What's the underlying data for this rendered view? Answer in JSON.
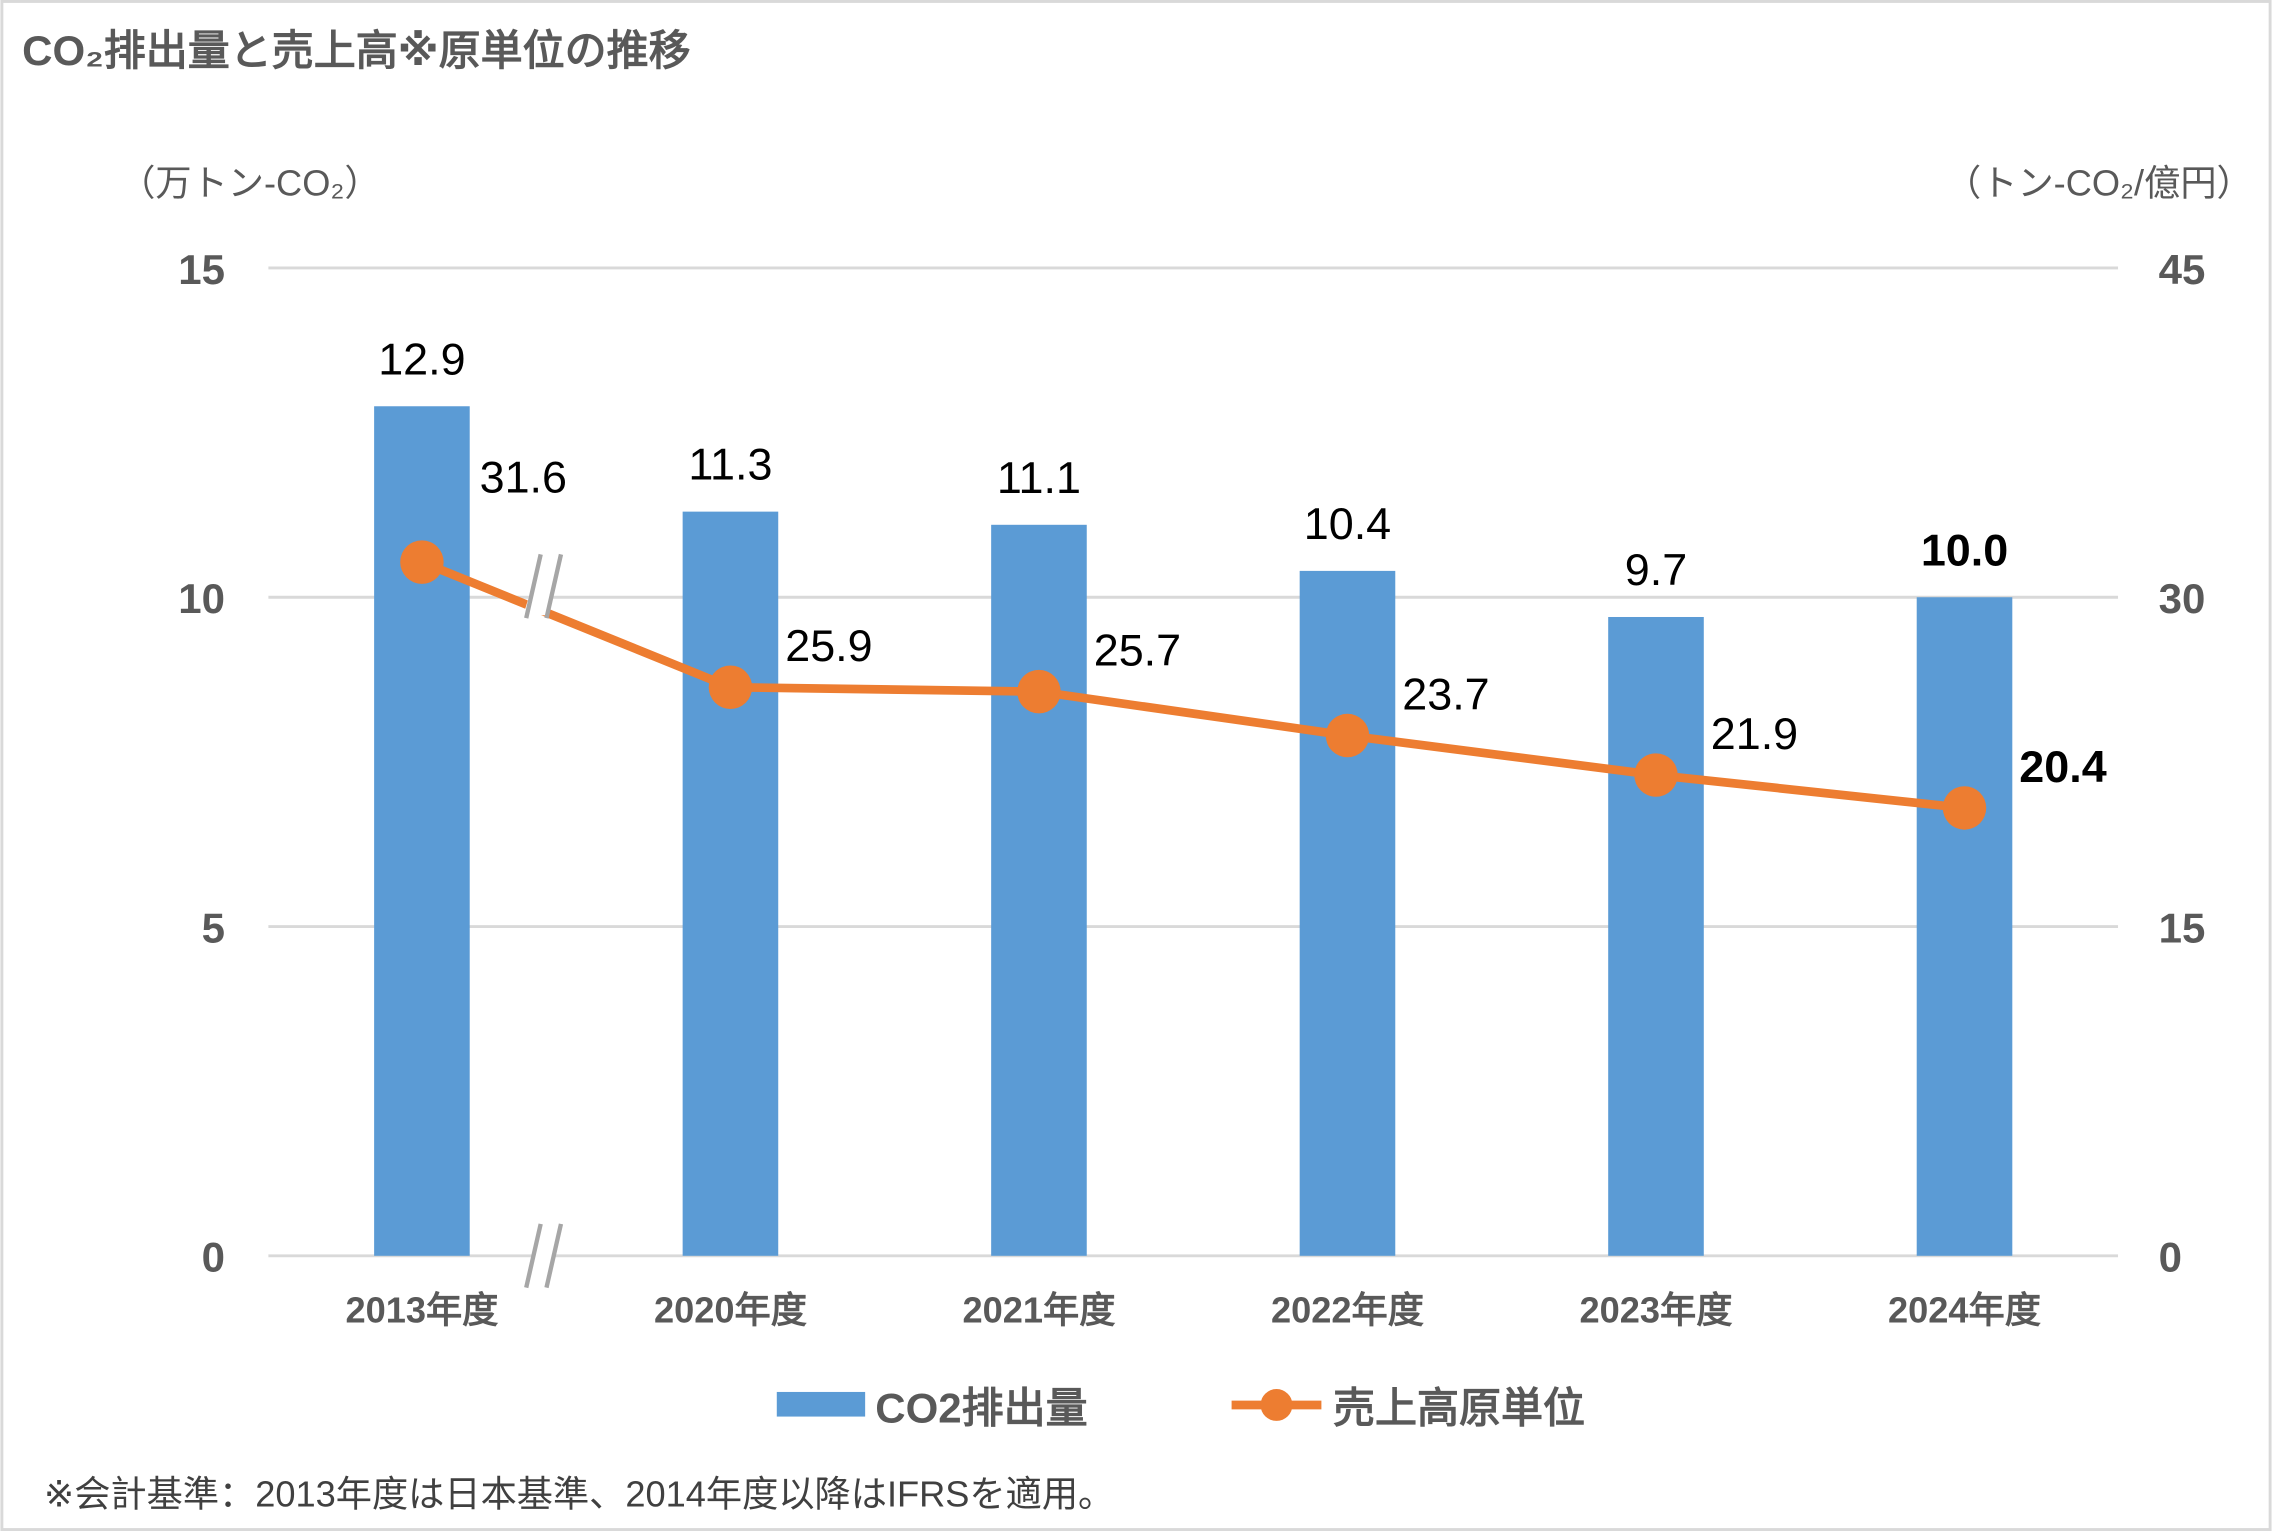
{
  "title": "CO₂排出量と売上高※原単位の推移",
  "footnote": "※会計基準：2013年度は日本基準、2014年度以降はIFRSを適用。",
  "colors": {
    "bar": "#5B9BD5",
    "line": "#ED7D31",
    "text": "#595959",
    "grid": "#D9D9D9",
    "break": "#A6A6A6"
  },
  "chart_data": {
    "type": "bar+line",
    "title": "CO₂排出量と売上高※原単位の推移",
    "categories": [
      "2013年度",
      "2020年度",
      "2021年度",
      "2022年度",
      "2023年度",
      "2024年度"
    ],
    "series": [
      {
        "name": "CO2排出量",
        "type": "bar",
        "axis": "left",
        "values": [
          12.9,
          11.3,
          11.1,
          10.4,
          9.7,
          10.0
        ],
        "labels": [
          "12.9",
          "11.3",
          "11.1",
          "10.4",
          "9.7",
          "10.0"
        ]
      },
      {
        "name": "売上高原単位",
        "type": "line",
        "axis": "right",
        "values": [
          31.6,
          25.9,
          25.7,
          23.7,
          21.9,
          20.4
        ],
        "labels": [
          "31.6",
          "25.9",
          "25.7",
          "23.7",
          "21.9",
          "20.4"
        ]
      }
    ],
    "left_axis": {
      "label": "（万トン-CO₂）",
      "range": [
        0,
        15
      ],
      "ticks": [
        "0",
        "5",
        "10",
        "15"
      ]
    },
    "right_axis": {
      "label": "（トン-CO₂/億円）",
      "range": [
        0,
        45
      ],
      "ticks": [
        "0",
        "15",
        "30",
        "45"
      ]
    },
    "axis_break_after": "2013年度",
    "grid": true,
    "legend_position": "bottom"
  }
}
